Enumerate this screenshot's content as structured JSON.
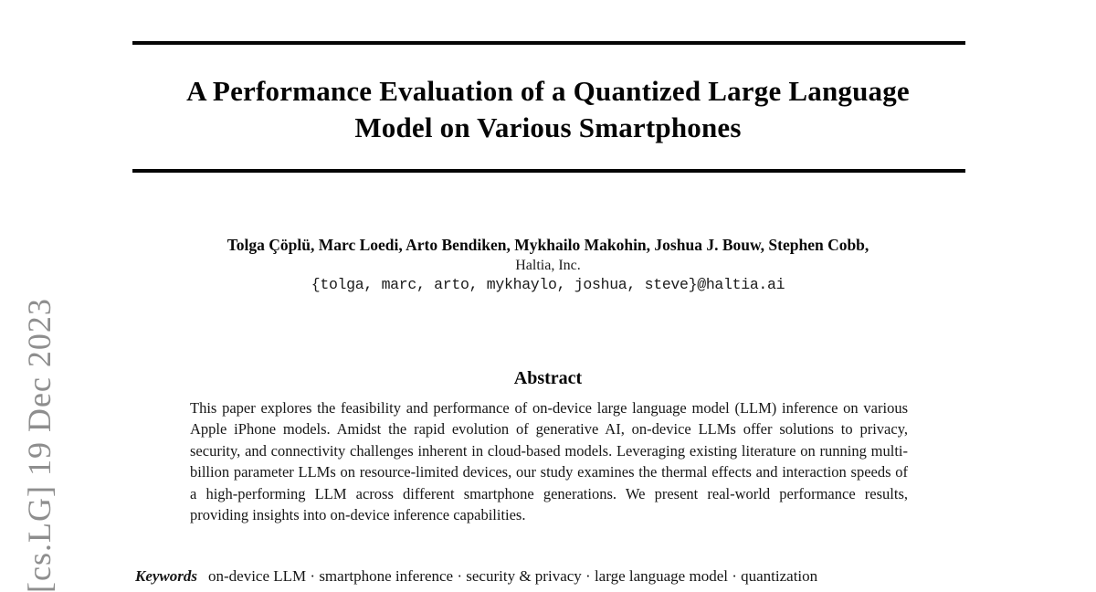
{
  "document": {
    "title_lines": [
      "A Performance Evaluation of a Quantized Large Language",
      "Model on Various Smartphones"
    ],
    "authors": "Tolga Çöplü, Marc Loedi, Arto Bendiken, Mykhailo Makohin, Joshua J. Bouw, Stephen Cobb,",
    "affiliation": "Haltia, Inc.",
    "emails": "{tolga, marc, arto, mykhaylo, joshua, steve}@haltia.ai",
    "abstract": {
      "heading": "Abstract",
      "body": "This paper explores the feasibility and performance of on-device large language model (LLM) inference on various Apple iPhone models. Amidst the rapid evolution of generative AI, on-device LLMs offer solutions to privacy, security, and connectivity challenges inherent in cloud-based models. Leveraging existing literature on running multi-billion parameter LLMs on resource-limited devices, our study examines the thermal effects and interaction speeds of a high-performing LLM across different smartphone generations. We present real-world performance results, providing insights into on-device inference capabilities."
    },
    "keywords": {
      "label": "Keywords",
      "text": "on-device LLM · smartphone inference · security & privacy · large language model · quantization"
    },
    "arxiv_banner": "[cs.LG] 19 Dec 2023"
  },
  "colors": {
    "text": "#1a1a1a",
    "rule": "#050505",
    "banner_gray": "#8e8e8e",
    "background": "#ffffff"
  }
}
